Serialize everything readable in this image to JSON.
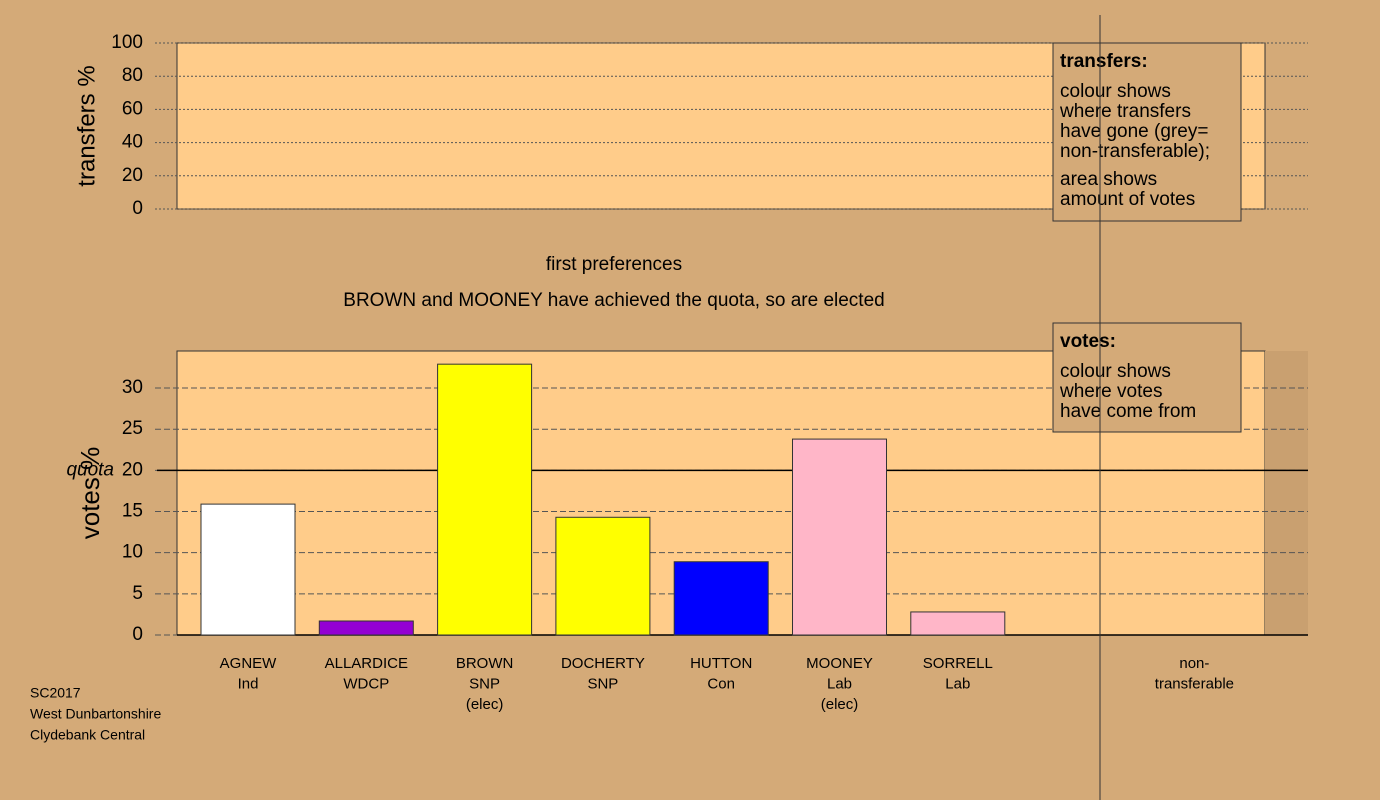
{
  "chart_data": [
    {
      "type": "empty",
      "ylabel": "transfers %",
      "ylim": [
        0,
        100
      ],
      "yticks": [
        0,
        20,
        40,
        60,
        80,
        100
      ],
      "grid": true,
      "legend": {
        "title": "transfers:",
        "lines": [
          "colour shows",
          "where transfers",
          "have gone (grey=",
          "non-transferable);",
          "area shows",
          "amount of votes"
        ]
      }
    },
    {
      "type": "bar",
      "title": "first preferences",
      "subtitle": "BROWN and MOONEY have achieved the quota, so are elected",
      "ylabel": "votes %",
      "ylim": [
        0,
        34.5
      ],
      "yticks": [
        0,
        5,
        10,
        15,
        20,
        25,
        30
      ],
      "grid": true,
      "quota": {
        "label": "quota",
        "value": 20
      },
      "categories": [
        [
          "AGNEW",
          "Ind"
        ],
        [
          "ALLARDICE",
          "WDCP"
        ],
        [
          "BROWN",
          "SNP",
          "(elec)"
        ],
        [
          "DOCHERTY",
          "SNP"
        ],
        [
          "HUTTON",
          "Con"
        ],
        [
          "MOONEY",
          "Lab",
          "(elec)"
        ],
        [
          "SORRELL",
          "Lab"
        ],
        [
          "non-",
          "transferable"
        ]
      ],
      "values": [
        15.9,
        1.7,
        32.9,
        14.3,
        8.9,
        23.8,
        2.8,
        null
      ],
      "colors": [
        "#ffffff",
        "#9400d3",
        "#ffff00",
        "#ffff00",
        "#0000ff",
        "#ffb6c8",
        "#ffb6c8",
        "#aaaaaa"
      ],
      "legend": {
        "title": "votes:",
        "lines": [
          "colour shows",
          "where votes",
          "have come from"
        ]
      }
    }
  ],
  "footer": [
    "SC2017",
    "West Dunbartonshire",
    "Clydebank Central"
  ]
}
